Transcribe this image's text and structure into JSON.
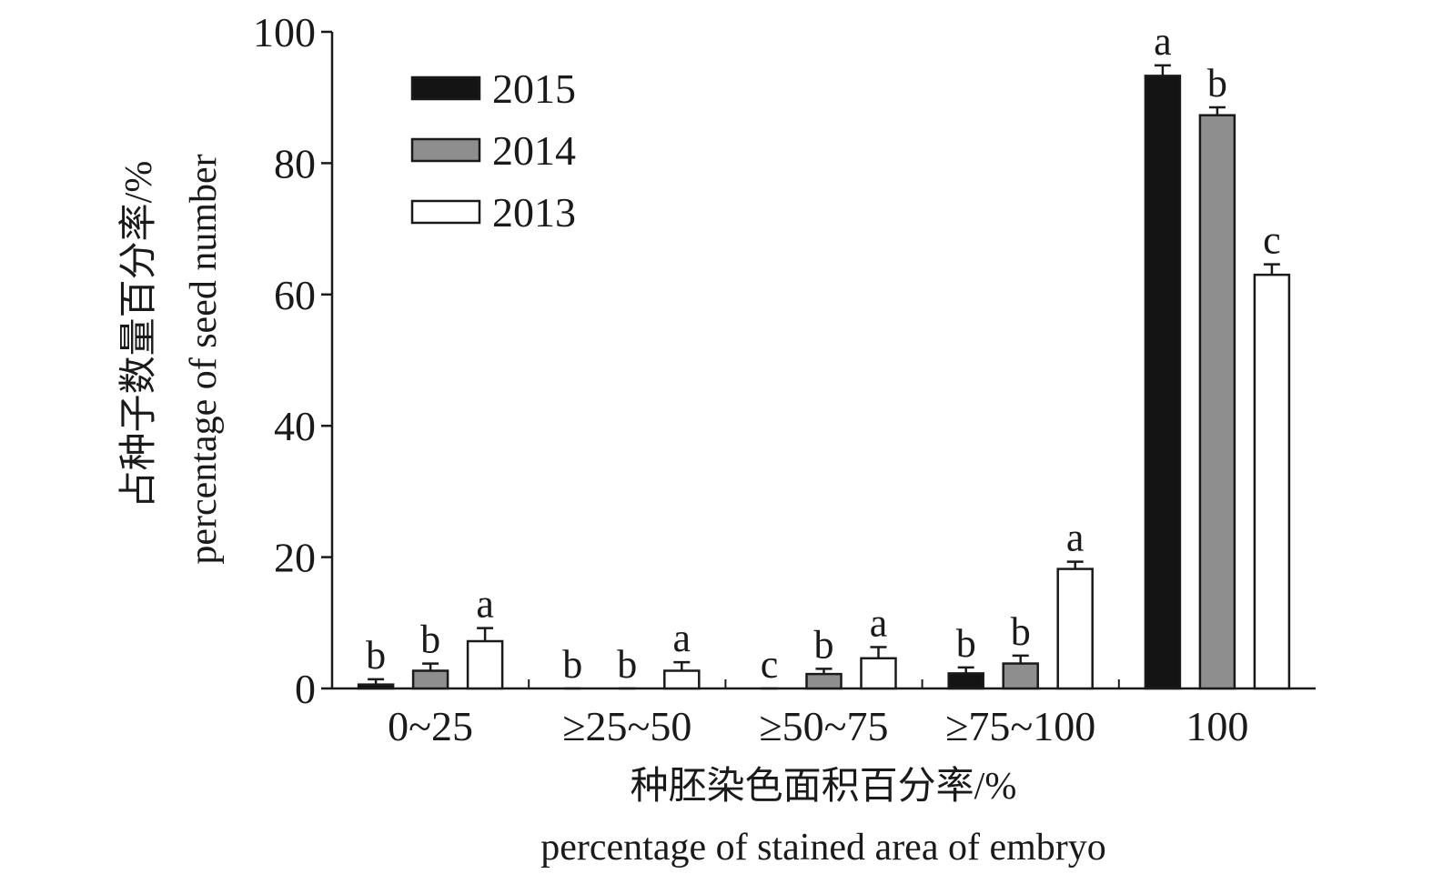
{
  "chart_data": {
    "type": "bar",
    "categories": [
      "0~25",
      "≥25~50",
      "≥50~75",
      "≥75~100",
      "100"
    ],
    "series": [
      {
        "name": "2015",
        "color": "#141414",
        "values": [
          0.6,
          0,
          0,
          2.3,
          93.3
        ],
        "errors": [
          0.8,
          0,
          0,
          0.9,
          1.6
        ],
        "letters": [
          "b",
          "b",
          "c",
          "b",
          "a"
        ]
      },
      {
        "name": "2014",
        "color": "#8e8e8e",
        "values": [
          2.7,
          0,
          2.2,
          3.8,
          87.3
        ],
        "errors": [
          1.1,
          0,
          0.8,
          1.2,
          1.2
        ],
        "letters": [
          "b",
          "b",
          "b",
          "b",
          "b"
        ]
      },
      {
        "name": "2013",
        "color": "#ffffff",
        "values": [
          7.2,
          2.7,
          4.6,
          18.2,
          63.0
        ],
        "errors": [
          2.0,
          1.3,
          1.7,
          1.1,
          1.6
        ],
        "letters": [
          "a",
          "a",
          "a",
          "a",
          "c"
        ]
      }
    ],
    "xlabel": "种胚染色面积百分率/%",
    "xlabel_en": "percentage of stained area of embryo",
    "ylabel": "占种子数量百分率/%",
    "ylabel_en": "percentage of seed number",
    "ylim": [
      0,
      100
    ],
    "yticks": [
      0,
      20,
      40,
      60,
      80,
      100
    ],
    "legend_position": "top-left",
    "grid": false
  }
}
